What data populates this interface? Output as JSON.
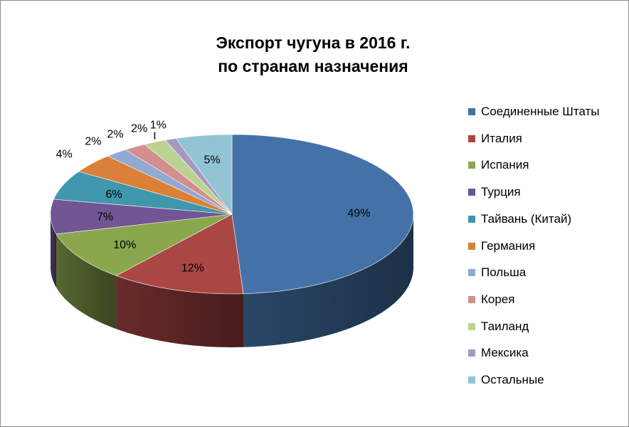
{
  "chart_data": {
    "type": "pie",
    "title": "Экспорт чугуна в 2016 г. по странам назначения",
    "title_lines": [
      "Экспорт чугуна в 2016 г.",
      "по странам назначения"
    ],
    "legend_position": "right",
    "slices": [
      {
        "name": "Соединенные Штаты",
        "value": 49,
        "label": "49%",
        "color": "#4472A8"
      },
      {
        "name": "Италия",
        "value": 12,
        "label": "12%",
        "color": "#AA4644"
      },
      {
        "name": "Испания",
        "value": 10,
        "label": "10%",
        "color": "#8AA74E"
      },
      {
        "name": "Турция",
        "value": 7,
        "label": "7%",
        "color": "#715594"
      },
      {
        "name": "Тайвань (Китай)",
        "value": 6,
        "label": "6%",
        "color": "#4097AD"
      },
      {
        "name": "Германия",
        "value": 4,
        "label": "4%",
        "color": "#DA8038"
      },
      {
        "name": "Польша",
        "value": 2,
        "label": "2%",
        "color": "#92A9D1"
      },
      {
        "name": "Корея",
        "value": 2,
        "label": "2%",
        "color": "#D38F8E"
      },
      {
        "name": "Таиланд",
        "value": 2,
        "label": "2%",
        "color": "#BCD293"
      },
      {
        "name": "Мексика",
        "value": 1,
        "label": "1%",
        "color": "#A699BF"
      },
      {
        "name": "Остальные",
        "value": 5,
        "label": "5%",
        "color": "#92C4D5"
      }
    ]
  }
}
